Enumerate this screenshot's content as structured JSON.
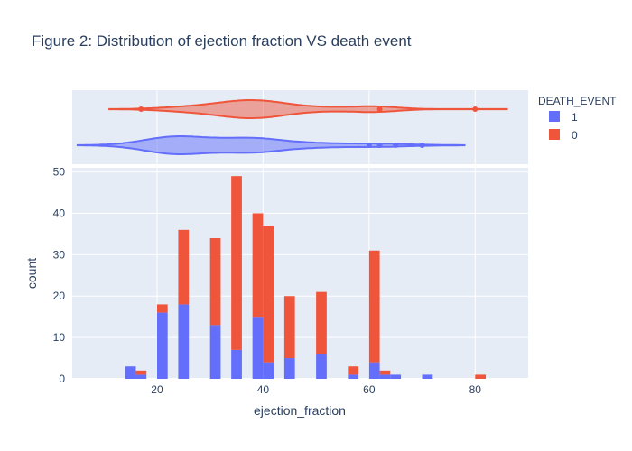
{
  "chart_data": {
    "type": "bar",
    "title": "Figure 2: Distribution of ejection fraction VS death event",
    "xlabel": "ejection_fraction",
    "ylabel": "count",
    "barmode": "stacked histogram with marginal violin",
    "xlim": [
      4,
      90
    ],
    "ylim": [
      0,
      51
    ],
    "x_ticks": [
      20,
      40,
      60,
      80
    ],
    "y_ticks": [
      0,
      10,
      20,
      30,
      40,
      50
    ],
    "bin_width": 2,
    "grid": true,
    "legend": {
      "title": "DEATH_EVENT",
      "placement": "top-right"
    },
    "colors": {
      "1": "#636efa",
      "0": "#ef553b",
      "plot_bg": "#e5ecf6",
      "text": "#2a3f5f"
    },
    "bins": [
      14,
      16,
      20,
      24,
      30,
      34,
      38,
      40,
      44,
      50,
      56,
      60,
      62,
      64,
      70,
      80
    ],
    "series": [
      {
        "name": "1",
        "color": "#636efa",
        "values": [
          3,
          1,
          16,
          18,
          13,
          7,
          15,
          4,
          5,
          6,
          1,
          4,
          1,
          1,
          1,
          0
        ]
      },
      {
        "name": "0",
        "color": "#ef553b",
        "values": [
          0,
          1,
          2,
          18,
          21,
          42,
          25,
          33,
          15,
          15,
          2,
          27,
          1,
          0,
          0,
          1
        ]
      }
    ],
    "marginal": {
      "type": "violin",
      "series": [
        {
          "name": "0",
          "range": [
            11,
            86
          ],
          "outliers": [
            17,
            62,
            80
          ]
        },
        {
          "name": "1",
          "range": [
            5,
            78
          ],
          "outliers": [
            60,
            62,
            65,
            70
          ]
        }
      ]
    }
  }
}
